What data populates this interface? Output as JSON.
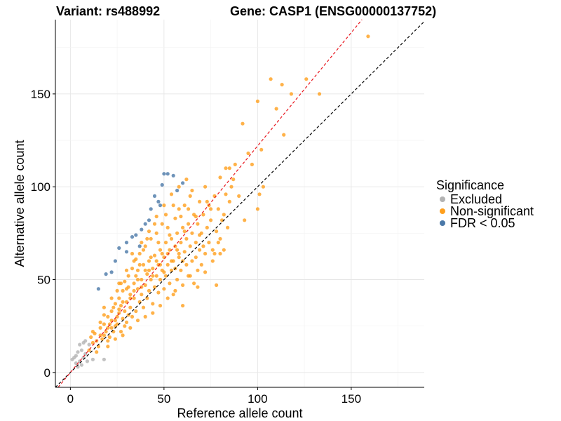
{
  "chart_data": {
    "type": "scatter",
    "title_left": "Variant: rs488992",
    "title_right": "Gene: CASP1 (ENSG00000137752)",
    "xlabel": "Reference allele count",
    "ylabel": "Alternative allele count",
    "xlim": [
      -8,
      189
    ],
    "ylim": [
      -8,
      190
    ],
    "xticks": [
      0,
      50,
      100,
      150
    ],
    "yticks": [
      0,
      50,
      100,
      150
    ],
    "grid": true,
    "reference_lines": [
      {
        "name": "identity",
        "slope": 1.0,
        "intercept": 0,
        "color": "#000000",
        "style": "dashed"
      },
      {
        "name": "fitted",
        "slope": 1.22,
        "intercept": 0,
        "color": "#e8141c",
        "style": "dashed"
      }
    ],
    "legend": {
      "title": "Significance",
      "position": "right",
      "entries": [
        {
          "label": "Excluded",
          "color": "#b3b3b3"
        },
        {
          "label": "Non-significant",
          "color": "#ff9f1c"
        },
        {
          "label": "FDR < 0.05",
          "color": "#4a78a8"
        }
      ]
    },
    "series": [
      {
        "name": "Excluded",
        "color": "#b3b3b3",
        "points": [
          [
            1,
            7
          ],
          [
            2,
            8
          ],
          [
            3,
            5
          ],
          [
            4,
            3
          ],
          [
            5,
            6
          ],
          [
            5,
            15
          ],
          [
            6,
            12
          ],
          [
            7,
            8
          ],
          [
            8,
            17
          ],
          [
            8,
            10
          ],
          [
            9,
            6
          ],
          [
            4,
            11
          ],
          [
            6,
            4
          ],
          [
            10,
            15
          ],
          [
            12,
            7
          ],
          [
            3,
            9
          ],
          [
            7,
            16
          ],
          [
            18,
            7
          ]
        ]
      },
      {
        "name": "FDR < 0.05",
        "color": "#4a78a8",
        "points": [
          [
            15,
            45
          ],
          [
            19,
            53
          ],
          [
            22,
            54
          ],
          [
            24,
            60
          ],
          [
            26,
            67
          ],
          [
            30,
            70
          ],
          [
            33,
            73
          ],
          [
            35,
            74
          ],
          [
            38,
            77
          ],
          [
            40,
            80
          ],
          [
            42,
            82
          ],
          [
            43,
            88
          ],
          [
            47,
            92
          ],
          [
            49,
            101
          ],
          [
            50,
            107
          ],
          [
            52,
            107
          ],
          [
            55,
            106
          ],
          [
            57,
            98
          ],
          [
            60,
            102
          ],
          [
            45,
            95
          ],
          [
            48,
            90
          ],
          [
            37,
            68
          ],
          [
            30,
            65
          ]
        ]
      },
      {
        "name": "Non-significant",
        "color": "#ff9f1c",
        "points": [
          [
            12,
            16
          ],
          [
            11,
            19
          ],
          [
            14,
            17
          ],
          [
            13,
            21
          ],
          [
            16,
            24
          ],
          [
            15,
            14
          ],
          [
            17,
            18
          ],
          [
            18,
            20
          ],
          [
            16,
            27
          ],
          [
            19,
            22
          ],
          [
            20,
            30
          ],
          [
            20,
            17
          ],
          [
            21,
            26
          ],
          [
            22,
            24
          ],
          [
            22,
            33
          ],
          [
            23,
            22
          ],
          [
            24,
            28
          ],
          [
            24,
            37
          ],
          [
            25,
            30
          ],
          [
            25,
            26
          ],
          [
            26,
            40
          ],
          [
            26,
            34
          ],
          [
            27,
            22
          ],
          [
            27,
            36
          ],
          [
            28,
            29
          ],
          [
            28,
            44
          ],
          [
            29,
            33
          ],
          [
            29,
            49
          ],
          [
            30,
            38
          ],
          [
            30,
            27
          ],
          [
            31,
            46
          ],
          [
            31,
            52
          ],
          [
            32,
            35
          ],
          [
            32,
            42
          ],
          [
            33,
            56
          ],
          [
            33,
            30
          ],
          [
            34,
            48
          ],
          [
            34,
            40
          ],
          [
            35,
            61
          ],
          [
            35,
            33
          ],
          [
            36,
            45
          ],
          [
            36,
            55
          ],
          [
            37,
            38
          ],
          [
            37,
            64
          ],
          [
            38,
            50
          ],
          [
            38,
            42
          ],
          [
            39,
            58
          ],
          [
            39,
            35
          ],
          [
            40,
            47
          ],
          [
            40,
            68
          ],
          [
            41,
            53
          ],
          [
            41,
            40
          ],
          [
            42,
            60
          ],
          [
            42,
            44
          ],
          [
            43,
            72
          ],
          [
            43,
            50
          ],
          [
            44,
            56
          ],
          [
            44,
            37
          ],
          [
            45,
            63
          ],
          [
            45,
            46
          ],
          [
            46,
            52
          ],
          [
            46,
            75
          ],
          [
            47,
            58
          ],
          [
            47,
            43
          ],
          [
            48,
            66
          ],
          [
            48,
            50
          ],
          [
            49,
            55
          ],
          [
            49,
            80
          ],
          [
            50,
            62
          ],
          [
            50,
            45
          ],
          [
            51,
            70
          ],
          [
            51,
            52
          ],
          [
            52,
            58
          ],
          [
            52,
            78
          ],
          [
            53,
            48
          ],
          [
            53,
            66
          ],
          [
            54,
            72
          ],
          [
            54,
            55
          ],
          [
            55,
            60
          ],
          [
            55,
            42
          ],
          [
            56,
            68
          ],
          [
            56,
            83
          ],
          [
            57,
            50
          ],
          [
            57,
            75
          ],
          [
            58,
            62
          ],
          [
            58,
            88
          ],
          [
            59,
            55
          ],
          [
            59,
            70
          ],
          [
            60,
            78
          ],
          [
            60,
            47
          ],
          [
            61,
            65
          ],
          [
            61,
            90
          ],
          [
            62,
            58
          ],
          [
            62,
            72
          ],
          [
            63,
            80
          ],
          [
            63,
            52
          ],
          [
            64,
            68
          ],
          [
            64,
            95
          ],
          [
            65,
            60
          ],
          [
            65,
            75
          ],
          [
            66,
            85
          ],
          [
            66,
            48
          ],
          [
            67,
            70
          ],
          [
            67,
            62
          ],
          [
            68,
            80
          ],
          [
            68,
            55
          ],
          [
            69,
            92
          ],
          [
            69,
            66
          ],
          [
            70,
            75
          ],
          [
            70,
            58
          ],
          [
            71,
            85
          ],
          [
            72,
            64
          ],
          [
            72,
            100
          ],
          [
            73,
            78
          ],
          [
            74,
            70
          ],
          [
            74,
            90
          ],
          [
            75,
            82
          ],
          [
            76,
            66
          ],
          [
            77,
            95
          ],
          [
            78,
            76
          ],
          [
            79,
            88
          ],
          [
            80,
            72
          ],
          [
            80,
            105
          ],
          [
            82,
            85
          ],
          [
            83,
            110
          ],
          [
            84,
            78
          ],
          [
            85,
            92
          ],
          [
            86,
            100
          ],
          [
            88,
            112
          ],
          [
            90,
            95
          ],
          [
            92,
            134
          ],
          [
            93,
            82
          ],
          [
            95,
            118
          ],
          [
            97,
            112
          ],
          [
            100,
            146
          ],
          [
            100,
            88
          ],
          [
            101,
            96
          ],
          [
            102,
            120
          ],
          [
            103,
            100
          ],
          [
            107,
            158
          ],
          [
            110,
            142
          ],
          [
            113,
            155
          ],
          [
            114,
            128
          ],
          [
            118,
            150
          ],
          [
            126,
            158
          ],
          [
            133,
            150
          ],
          [
            159,
            181
          ],
          [
            10,
            12
          ],
          [
            12,
            22
          ],
          [
            14,
            11
          ],
          [
            18,
            31
          ],
          [
            21,
            19
          ],
          [
            23,
            35
          ],
          [
            25,
            44
          ],
          [
            27,
            48
          ],
          [
            29,
            25
          ],
          [
            31,
            31
          ],
          [
            33,
            64
          ],
          [
            35,
            52
          ],
          [
            37,
            58
          ],
          [
            39,
            66
          ],
          [
            41,
            72
          ],
          [
            43,
            62
          ],
          [
            45,
            80
          ],
          [
            47,
            70
          ],
          [
            49,
            64
          ],
          [
            51,
            85
          ],
          [
            53,
            74
          ],
          [
            55,
            90
          ],
          [
            57,
            66
          ],
          [
            59,
            84
          ],
          [
            61,
            76
          ],
          [
            63,
            88
          ],
          [
            65,
            98
          ],
          [
            67,
            84
          ],
          [
            69,
            74
          ],
          [
            71,
            68
          ],
          [
            73,
            92
          ],
          [
            75,
            88
          ],
          [
            77,
            64
          ],
          [
            79,
            70
          ],
          [
            81,
            82
          ],
          [
            83,
            96
          ],
          [
            85,
            110
          ],
          [
            87,
            104
          ],
          [
            40,
            30
          ],
          [
            44,
            32
          ],
          [
            48,
            36
          ],
          [
            52,
            40
          ],
          [
            56,
            44
          ],
          [
            60,
            36
          ],
          [
            64,
            52
          ],
          [
            68,
            46
          ],
          [
            72,
            54
          ],
          [
            76,
            60
          ],
          [
            80,
            64
          ],
          [
            78,
            47
          ],
          [
            82,
            66
          ],
          [
            36,
            28
          ],
          [
            32,
            24
          ],
          [
            28,
            20
          ],
          [
            24,
            18
          ],
          [
            20,
            14
          ],
          [
            34,
            60
          ],
          [
            30,
            55
          ],
          [
            26,
            48
          ],
          [
            22,
            40
          ],
          [
            18,
            35
          ],
          [
            38,
            70
          ],
          [
            42,
            76
          ],
          [
            46,
            84
          ],
          [
            50,
            90
          ],
          [
            54,
            96
          ],
          [
            58,
            100
          ],
          [
            62,
            104
          ],
          [
            46,
            60
          ],
          [
            48,
            58
          ],
          [
            44,
            52
          ],
          [
            42,
            55
          ],
          [
            50,
            54
          ],
          [
            52,
            64
          ],
          [
            54,
            60
          ],
          [
            56,
            56
          ],
          [
            58,
            64
          ],
          [
            60,
            60
          ],
          [
            36,
            50
          ],
          [
            38,
            46
          ],
          [
            40,
            55
          ],
          [
            30,
            45
          ],
          [
            32,
            40
          ],
          [
            34,
            44
          ],
          [
            28,
            38
          ],
          [
            26,
            32
          ],
          [
            24,
            25
          ],
          [
            22,
            28
          ],
          [
            20,
            24
          ],
          [
            18,
            26
          ],
          [
            16,
            20
          ]
        ]
      }
    ]
  }
}
